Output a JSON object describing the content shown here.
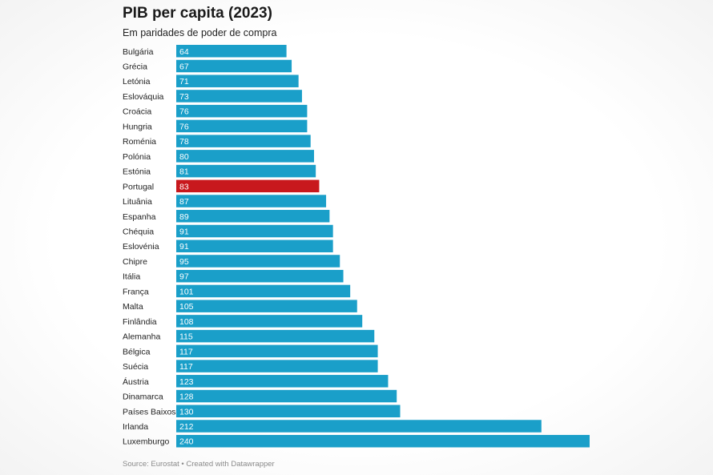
{
  "chart_data": {
    "type": "bar",
    "orientation": "horizontal",
    "title": "PIB per capita (2023)",
    "subtitle": "Em paridades de poder de compra",
    "categories": [
      "Bulgária",
      "Grécia",
      "Letónia",
      "Eslováquia",
      "Croácia",
      "Hungria",
      "Roménia",
      "Polónia",
      "Estónia",
      "Portugal",
      "Lituânia",
      "Espanha",
      "Chéquia",
      "Eslovénia",
      "Chipre",
      "Itália",
      "França",
      "Malta",
      "Finlândia",
      "Alemanha",
      "Bélgica",
      "Suécia",
      "Áustria",
      "Dinamarca",
      "Países Baixos",
      "Irlanda",
      "Luxemburgo"
    ],
    "values": [
      64,
      67,
      71,
      73,
      76,
      76,
      78,
      80,
      81,
      83,
      87,
      89,
      91,
      91,
      95,
      97,
      101,
      105,
      108,
      115,
      117,
      117,
      123,
      128,
      130,
      212,
      240
    ],
    "highlight": "Portugal",
    "colors": {
      "bar": "#1a9fc9",
      "highlight": "#c8181d",
      "label": "#ffffff"
    },
    "xlim": [
      0,
      240
    ],
    "grid": false,
    "data_labels": "inside-left",
    "source": "Source: Eurostat • Created with Datawrapper"
  }
}
